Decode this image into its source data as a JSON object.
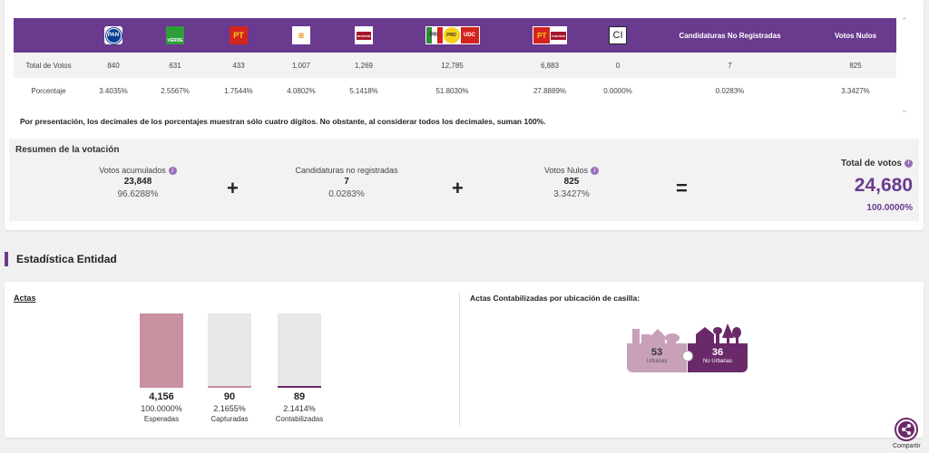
{
  "table": {
    "headers": [
      {
        "label": "",
        "logo": "PAN"
      },
      {
        "label": "",
        "logo": "VERDE"
      },
      {
        "label": "",
        "logo": "PT"
      },
      {
        "label": "",
        "logo": "MC"
      },
      {
        "label": "",
        "logo": "morena"
      },
      {
        "label": "",
        "logo": "PRI-PRD-UDC"
      },
      {
        "label": "",
        "logo": "PT-morena"
      },
      {
        "label": "",
        "logo": "CI"
      },
      {
        "label": "Candidaturas No Registradas"
      },
      {
        "label": "Votos Nulos"
      }
    ],
    "logo_text": {
      "pan": "PAN",
      "verde": "VERDE",
      "pt": "PT",
      "mc": "≋",
      "morena": "morena",
      "pri": "PRI",
      "prd": "PRD",
      "udc": "UDC",
      "pt2": "PT",
      "morena2": "morena",
      "ci": "CI"
    },
    "rows": [
      {
        "label": "Total de Votos",
        "values": [
          "840",
          "631",
          "433",
          "1,007",
          "1,269",
          "12,785",
          "6,883",
          "0",
          "7",
          "825"
        ]
      },
      {
        "label": "Porcentaje",
        "values": [
          "3.4035%",
          "2.5567%",
          "1.7544%",
          "4.0802%",
          "5.1418%",
          "51.8030%",
          "27.8889%",
          "0.0000%",
          "0.0283%",
          "3.3427%"
        ]
      }
    ],
    "header_no_registradas": "Candidaturas No Registradas",
    "header_nulos": "Votos Nulos"
  },
  "note": "Por presentación, los decimales de los porcentajes muestran sólo cuatro dígitos. No obstante, al considerar todos los decimales, suman 100%.",
  "summary": {
    "title": "Resumen de la votación",
    "acumulados": {
      "label": "Votos acumulados",
      "value": "23,848",
      "pct": "96.6288%"
    },
    "no_registradas": {
      "label": "Candidaturas no registradas",
      "value": "7",
      "pct": "0.0283%"
    },
    "nulos": {
      "label": "Votos Nulos",
      "value": "825",
      "pct": "3.3427%"
    },
    "plus": "+",
    "equals": "=",
    "total": {
      "label": "Total de votos",
      "value": "24,680",
      "pct": "100.0000%"
    }
  },
  "estadistica": {
    "title": "Estadística Entidad",
    "actas_label": "Actas",
    "bars": [
      {
        "value": "4,156",
        "pct": "100.0000%",
        "name": "Esperadas",
        "fraction": 1.0,
        "color": "#c9909f"
      },
      {
        "value": "90",
        "pct": "2.1655%",
        "name": "Capturadas",
        "fraction": 0.021655,
        "color": "#c9909f"
      },
      {
        "value": "89",
        "pct": "2.1414%",
        "name": "Contabilizadas",
        "fraction": 0.021414,
        "color": "#6a2a6a"
      }
    ],
    "ubicacion_label": "Actas Contabilizadas por ubicación de casilla:",
    "urbanas": {
      "value": "53",
      "name": "Urbanas"
    },
    "no_urbanas": {
      "value": "36",
      "name": "No Urbanas"
    }
  },
  "share": {
    "label": "Compartir"
  },
  "colors": {
    "accent": "#6a3a8f",
    "dark_purple": "#6a2a6a",
    "pink": "#c9909f"
  }
}
